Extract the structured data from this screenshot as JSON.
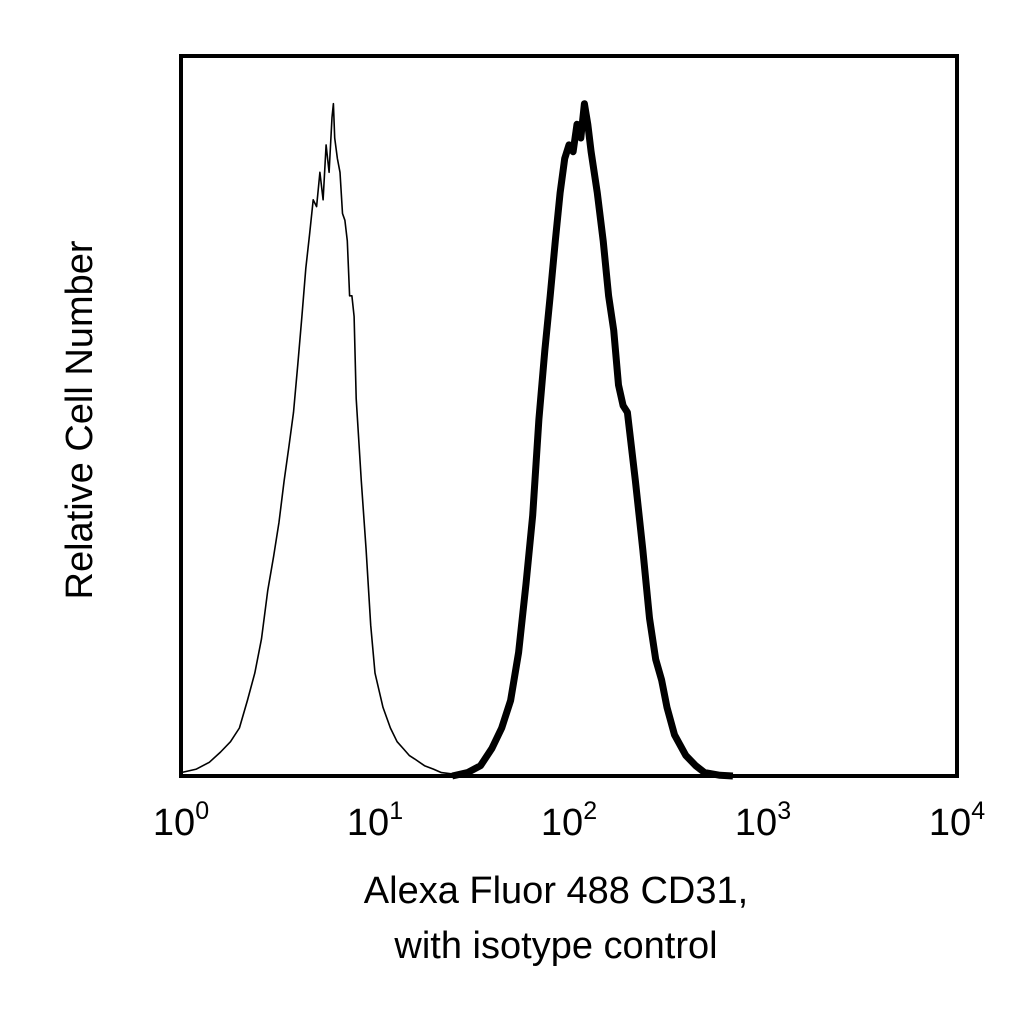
{
  "chart_data": {
    "type": "line",
    "chart_kind": "flow-cytometry histogram",
    "xlabel_lines": [
      "Alexa Fluor 488 CD31,",
      "with isotype control"
    ],
    "ylabel": "Relative Cell Number",
    "x_scale": "log",
    "xlim": [
      1,
      10000
    ],
    "ylim": [
      0,
      1
    ],
    "y_ticks_shown": false,
    "grid": false,
    "legend": "none",
    "x_ticks": [
      {
        "base": "10",
        "exp": "0",
        "value": 1
      },
      {
        "base": "10",
        "exp": "1",
        "value": 10
      },
      {
        "base": "10",
        "exp": "2",
        "value": 100
      },
      {
        "base": "10",
        "exp": "3",
        "value": 1000
      },
      {
        "base": "10",
        "exp": "4",
        "value": 10000
      }
    ],
    "series": [
      {
        "role": "isotype control",
        "stroke": "thin",
        "color": "#000000",
        "x": [
          1.0,
          1.2,
          1.4,
          1.6,
          1.8,
          2.0,
          2.2,
          2.4,
          2.6,
          2.8,
          3.0,
          3.2,
          3.4,
          3.6,
          3.8,
          4.0,
          4.2,
          4.4,
          4.6,
          4.8,
          5.0,
          5.2,
          5.4,
          5.6,
          5.8,
          6.0,
          6.1,
          6.2,
          6.4,
          6.6,
          6.8,
          7.0,
          7.2,
          7.4,
          7.6,
          7.8,
          8.0,
          8.5,
          9.0,
          9.5,
          10,
          11,
          12,
          13,
          14,
          15,
          16,
          18,
          20,
          22,
          25,
          28,
          30
        ],
        "y": [
          0.005,
          0.01,
          0.02,
          0.035,
          0.05,
          0.07,
          0.11,
          0.15,
          0.2,
          0.27,
          0.32,
          0.37,
          0.43,
          0.48,
          0.53,
          0.6,
          0.67,
          0.74,
          0.79,
          0.84,
          0.83,
          0.88,
          0.84,
          0.92,
          0.88,
          0.96,
          0.98,
          0.93,
          0.9,
          0.88,
          0.82,
          0.81,
          0.78,
          0.7,
          0.7,
          0.67,
          0.55,
          0.43,
          0.33,
          0.22,
          0.15,
          0.1,
          0.07,
          0.05,
          0.04,
          0.03,
          0.025,
          0.015,
          0.01,
          0.005,
          0.003,
          0.002,
          0.001
        ]
      },
      {
        "role": "CD31",
        "stroke": "thick",
        "color": "#000000",
        "x": [
          25,
          30,
          35,
          40,
          45,
          50,
          55,
          60,
          65,
          70,
          75,
          80,
          85,
          90,
          95,
          100,
          105,
          110,
          115,
          120,
          125,
          130,
          140,
          150,
          160,
          170,
          180,
          190,
          200,
          220,
          240,
          260,
          280,
          300,
          320,
          350,
          400,
          450,
          500,
          600,
          700
        ],
        "y": [
          0.0,
          0.005,
          0.015,
          0.04,
          0.07,
          0.11,
          0.18,
          0.28,
          0.38,
          0.52,
          0.62,
          0.7,
          0.78,
          0.85,
          0.9,
          0.92,
          0.91,
          0.95,
          0.93,
          0.98,
          0.95,
          0.91,
          0.85,
          0.78,
          0.7,
          0.65,
          0.57,
          0.54,
          0.53,
          0.43,
          0.33,
          0.23,
          0.17,
          0.14,
          0.1,
          0.06,
          0.03,
          0.015,
          0.005,
          0.001,
          0.0
        ]
      }
    ]
  }
}
